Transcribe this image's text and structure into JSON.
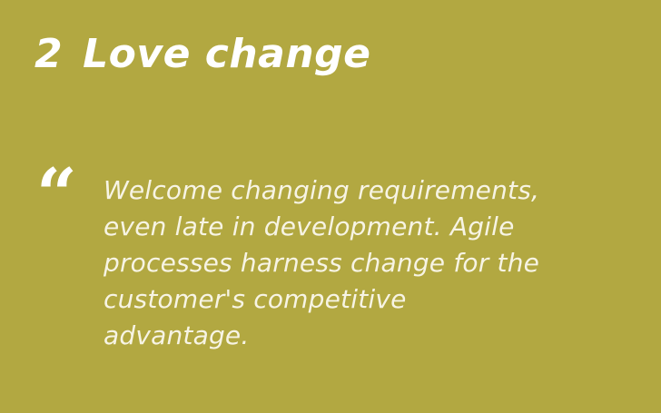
{
  "slide": {
    "number": "2",
    "title": "Love change",
    "quote_mark": "“",
    "quote": "Welcome changing requirements,\neven late in  development. Agile\nprocesses harness change for the\ncustomer's competitive\nadvantage."
  },
  "colors": {
    "background": "#b2a841",
    "text": "#ffffff"
  }
}
